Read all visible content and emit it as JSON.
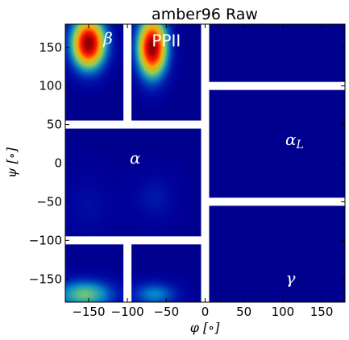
{
  "chart_data": {
    "type": "heatmap",
    "title": "amber96 Raw",
    "xlabel": "φ [∘]",
    "ylabel": "ψ [∘]",
    "xlim": [
      -180,
      180
    ],
    "ylim": [
      -180,
      180
    ],
    "xticks": [
      -150,
      -100,
      -50,
      0,
      50,
      100,
      150
    ],
    "xtick_labels": [
      "−150",
      "−100",
      "−50",
      "0",
      "50",
      "100",
      "150"
    ],
    "yticks": [
      -150,
      -100,
      -50,
      0,
      50,
      100,
      150
    ],
    "ytick_labels": [
      "−150",
      "−100",
      "−50",
      "0",
      "50",
      "100",
      "150"
    ],
    "colormap": "jet",
    "background_color": "#00008f",
    "separator_color": "#ffffff",
    "separators": {
      "vertical": [
        {
          "phi": -100,
          "psi_range": [
            50,
            180
          ]
        },
        {
          "phi": -100,
          "psi_range": [
            -180,
            -100
          ]
        },
        {
          "phi": 0,
          "psi_range": [
            -180,
            180
          ]
        }
      ],
      "horizontal": [
        {
          "psi": 50,
          "phi_range": [
            -180,
            0
          ]
        },
        {
          "psi": -100,
          "phi_range": [
            -180,
            0
          ]
        },
        {
          "psi": 100,
          "phi_range": [
            0,
            180
          ]
        },
        {
          "psi": -50,
          "phi_range": [
            0,
            180
          ]
        }
      ]
    },
    "regions": [
      {
        "label": "β",
        "phi": -125,
        "psi": 160
      },
      {
        "label": "PPII",
        "phi": -50,
        "psi": 157
      },
      {
        "label": "α",
        "phi": -90,
        "psi": 5
      },
      {
        "label": "α_L",
        "phi": 115,
        "psi": 30
      },
      {
        "label": "γ",
        "phi": 110,
        "psi": -150
      }
    ],
    "density_peaks": [
      {
        "phi": -150,
        "psi": 155,
        "level": 1.0,
        "sigma_phi": 16,
        "sigma_psi": 24
      },
      {
        "phi": -68,
        "psi": 150,
        "level": 1.0,
        "sigma_phi": 14,
        "sigma_psi": 28
      },
      {
        "phi": -155,
        "psi": -170,
        "level": 0.45,
        "sigma_phi": 28,
        "sigma_psi": 14
      },
      {
        "phi": -65,
        "psi": -170,
        "level": 0.3,
        "sigma_phi": 22,
        "sigma_psi": 12
      },
      {
        "phi": -65,
        "psi": -45,
        "level": 0.12,
        "sigma_phi": 18,
        "sigma_psi": 20
      },
      {
        "phi": -150,
        "psi": -55,
        "level": 0.08,
        "sigma_phi": 20,
        "sigma_psi": 25
      }
    ]
  }
}
